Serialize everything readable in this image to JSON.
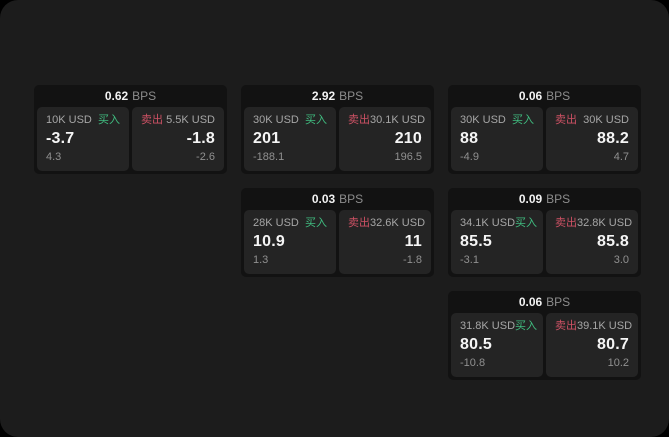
{
  "labels": {
    "buy": "买入",
    "sell": "卖出",
    "bps_unit": "BPS"
  },
  "colors": {
    "background": "#000000",
    "panel": "#1c1c1c",
    "card": "#121212",
    "tile": "#242424",
    "buy_accent": "#40bd80",
    "sell_accent": "#cd5164",
    "value_text": "#f5f5f5",
    "muted_text": "#a6a6a6",
    "dim_text": "#909090"
  },
  "cards": [
    {
      "bps": "0.62",
      "buy": {
        "notional": "10K USD",
        "price": "-3.7",
        "delta": "4.3"
      },
      "sell": {
        "notional": "5.5K USD",
        "price": "-1.8",
        "delta": "-2.6"
      }
    },
    {
      "bps": "2.92",
      "buy": {
        "notional": "30K USD",
        "price": "201",
        "delta": "-188.1"
      },
      "sell": {
        "notional": "30.1K USD",
        "price": "210",
        "delta": "196.5"
      }
    },
    {
      "bps": "0.06",
      "buy": {
        "notional": "30K USD",
        "price": "88",
        "delta": "-4.9"
      },
      "sell": {
        "notional": "30K USD",
        "price": "88.2",
        "delta": "4.7"
      }
    },
    {
      "bps": "0.03",
      "buy": {
        "notional": "28K USD",
        "price": "10.9",
        "delta": "1.3"
      },
      "sell": {
        "notional": "32.6K USD",
        "price": "11",
        "delta": "-1.8"
      }
    },
    {
      "bps": "0.09",
      "buy": {
        "notional": "34.1K USD",
        "price": "85.5",
        "delta": "-3.1"
      },
      "sell": {
        "notional": "32.8K USD",
        "price": "85.8",
        "delta": "3.0"
      }
    },
    {
      "bps": "0.06",
      "buy": {
        "notional": "31.8K USD",
        "price": "80.5",
        "delta": "-10.8"
      },
      "sell": {
        "notional": "39.1K USD",
        "price": "80.7",
        "delta": "10.2"
      }
    }
  ]
}
